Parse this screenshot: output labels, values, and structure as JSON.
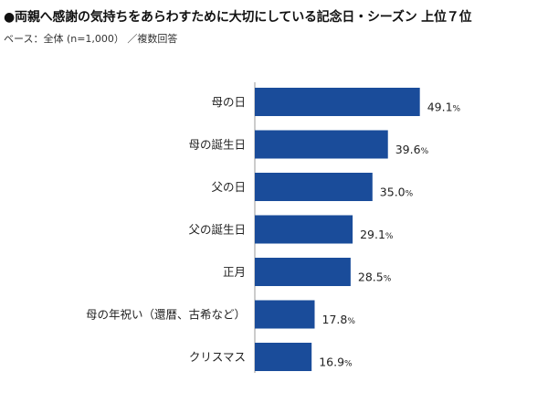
{
  "title": "●両親へ感謝の気持ちをあらわすために大切にしている記念日・シーズン 上位７位",
  "subtitle": "ベース：全体 (n=1,000） ／複数回答",
  "chart_data": {
    "type": "bar",
    "orientation": "horizontal",
    "categories": [
      "母の日",
      "母の誕生日",
      "父の日",
      "父の誕生日",
      "正月",
      "母の年祝い（還暦、古希など）",
      "クリスマス"
    ],
    "values": [
      49.1,
      39.6,
      35.0,
      29.1,
      28.5,
      17.8,
      16.9
    ],
    "value_labels": [
      "49.1",
      "39.6",
      "35.0",
      "29.1",
      "28.5",
      "17.8",
      "16.9"
    ],
    "unit": "%",
    "xlim": [
      0,
      100
    ],
    "grid": false,
    "bar_color": "#1a4c9a",
    "axis_color": "#999999"
  }
}
